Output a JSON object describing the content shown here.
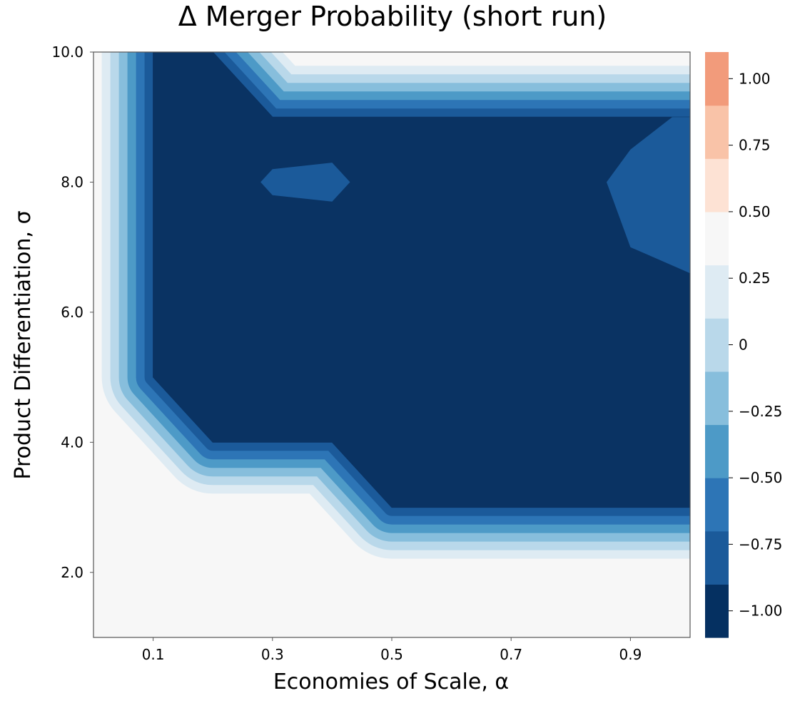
{
  "chart_data": {
    "type": "contour",
    "title": "Δ Merger Probability (short run)",
    "xlabel": "Economies of Scale, α",
    "ylabel": "Product Differentiation, σ",
    "xlim": [
      0.0,
      1.0
    ],
    "ylim": [
      1.0,
      10.0
    ],
    "xticks": [
      0.1,
      0.3,
      0.5,
      0.7,
      0.9
    ],
    "xtick_labels": [
      "0.1",
      "0.3",
      "0.5",
      "0.7",
      "0.9"
    ],
    "yticks": [
      2.0,
      4.0,
      6.0,
      8.0,
      10.0
    ],
    "ytick_labels": [
      "2.0",
      "4.0",
      "6.0",
      "8.0",
      "10.0"
    ],
    "grid": false,
    "colorbar": {
      "range": [
        -1.1,
        1.1
      ],
      "levels": [
        -1.1,
        -0.9,
        -0.7,
        -0.5,
        -0.3,
        -0.1,
        0.1,
        0.3,
        0.5,
        0.7,
        0.9,
        1.1
      ],
      "ticks": [
        -1.0,
        -0.75,
        -0.5,
        -0.25,
        0,
        0.25,
        0.5,
        0.75,
        1.0
      ],
      "tick_labels": [
        "−1.00",
        "−0.75",
        "−0.50",
        "−0.25",
        "0",
        "0.25",
        "0.50",
        "0.75",
        "1.00"
      ],
      "colors": [
        "#053061",
        "#1b5a9a",
        "#2d75b6",
        "#4d9ac7",
        "#87bedc",
        "#b9d8ea",
        "#deebf3",
        "#f7f7f7",
        "#fde2d4",
        "#f9c3a8",
        "#f29b7b",
        "#e06b51",
        "#c23a3a",
        "#9b1528",
        "#67001f"
      ]
    },
    "regions": {
      "zero_region_color": "#f7f7f7",
      "transition_colors": [
        "#deebf3",
        "#b9d8ea",
        "#87bedc",
        "#4d9ac7",
        "#2d75b6",
        "#1b5a9a"
      ],
      "core_color": "#0a3363",
      "pocket_color": "#1b5a9a",
      "core_value": -1.0,
      "pocket_value": -0.85,
      "core_outline": [
        [
          0.1,
          10.0
        ],
        [
          0.2,
          10.0
        ],
        [
          0.3,
          9.0
        ],
        [
          0.5,
          9.0
        ],
        [
          0.7,
          9.0
        ],
        [
          0.9,
          9.0
        ],
        [
          1.0,
          9.0
        ],
        [
          1.0,
          3.0
        ],
        [
          0.5,
          3.0
        ],
        [
          0.4,
          4.0
        ],
        [
          0.2,
          4.0
        ],
        [
          0.1,
          5.0
        ]
      ],
      "pockets": [
        [
          [
            0.28,
            8.0
          ],
          [
            0.3,
            8.2
          ],
          [
            0.4,
            8.3
          ],
          [
            0.43,
            8.0
          ],
          [
            0.4,
            7.7
          ],
          [
            0.3,
            7.8
          ]
        ],
        [
          [
            0.97,
            9.0
          ],
          [
            0.9,
            8.5
          ],
          [
            0.86,
            8.0
          ],
          [
            0.9,
            7.0
          ],
          [
            1.0,
            6.6
          ],
          [
            1.0,
            9.0
          ]
        ]
      ]
    }
  }
}
